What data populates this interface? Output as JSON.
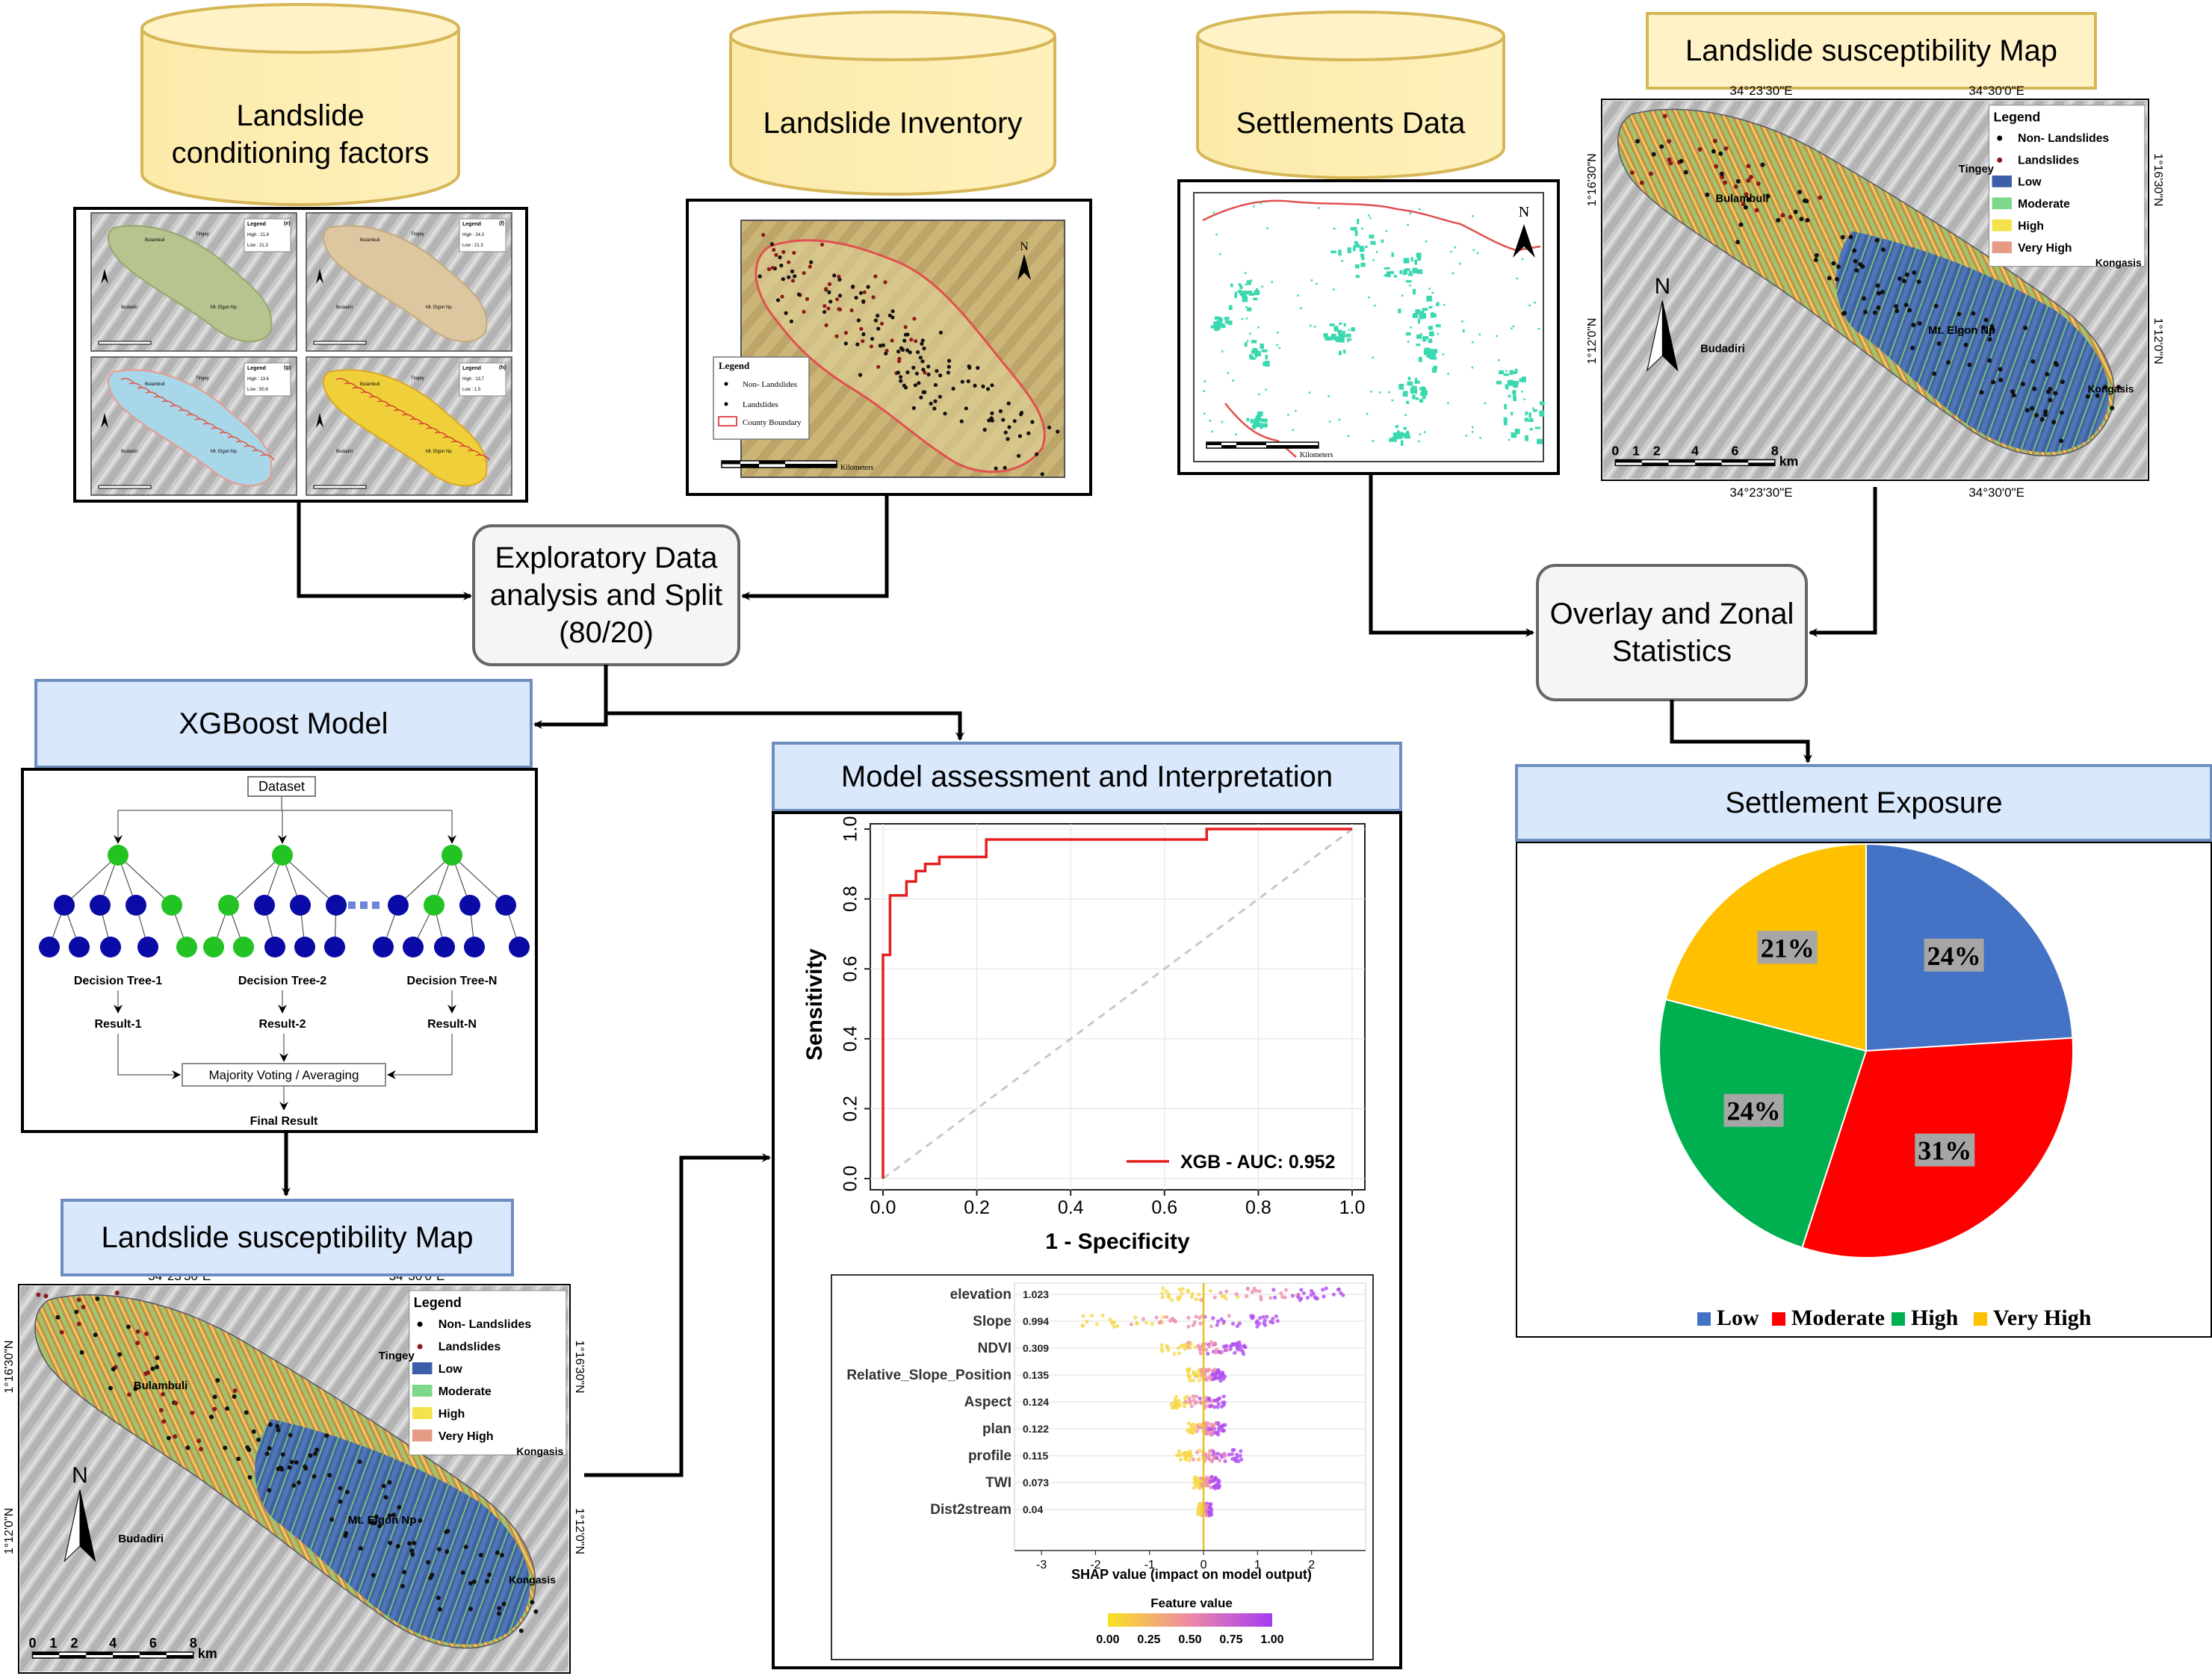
{
  "cylinders": {
    "conditioning": "Landslide\nconditioning factors",
    "inventory": "Landslide Inventory",
    "settlements": "Settlements Data"
  },
  "process": {
    "eda": "Exploratory Data\nanalysis and Split\n(80/20)",
    "overlay": "Overlay and Zonal\nStatistics"
  },
  "headers": {
    "xgboost": "XGBoost Model",
    "susceptibility_top": "Landslide susceptibility Map",
    "susceptibility_bottom": "Landslide susceptibility Map",
    "assessment": "Model assessment and Interpretation",
    "exposure": "Settlement Exposure"
  },
  "inventory_map": {
    "legend_title": "Legend",
    "legend": [
      "Non- Landslides",
      "Landslides",
      "County Boundary"
    ],
    "north": "N",
    "scale_unit": "Kilometers"
  },
  "settlement_map": {
    "north": "N",
    "scale_unit": "Kilometers"
  },
  "factor_panels": {
    "letters": [
      "(e)",
      "(f)",
      "(g)",
      "(h)"
    ],
    "legend_title": "Legend",
    "highs": [
      "High : 21.8",
      "High : 24.3",
      "High : 13.6",
      "High : 13.7"
    ],
    "lows": [
      "Low : 21.3",
      "Low : 21.3",
      "Low : 50.8",
      "Low : 1.5"
    ],
    "places": [
      "Bulambuli",
      "Tingey",
      "Budadiri",
      "Mt. Elgon Np"
    ]
  },
  "susc_map": {
    "lon_labels": [
      "34°23'30\"E",
      "34°30'0\"E"
    ],
    "lat_labels": [
      "1°16'30\"N",
      "1°12'0\"N"
    ],
    "legend_title": "Legend",
    "legend": [
      "Non- Landslides",
      "Landslides",
      "Low",
      "Moderate",
      "High",
      "Very High"
    ],
    "legend_colors": [
      "#000000",
      "#8b1a1a",
      "#3d5ea8",
      "#7dd88a",
      "#f3e24a",
      "#e59b86"
    ],
    "places": {
      "tingey": "Tingey",
      "bulambuli": "Bulambuli",
      "kongasis": "Kongasis",
      "elgon": "Mt. Elgon Np",
      "budadiri": "Budadiri"
    },
    "north": "N",
    "scale_ticks": [
      "0",
      "1",
      "2",
      "4",
      "6",
      "8"
    ],
    "scale_unit": "km"
  },
  "tree": {
    "dataset": "Dataset",
    "trees": [
      "Decision Tree-1",
      "Decision Tree-2",
      "Decision Tree-N"
    ],
    "results": [
      "Result-1",
      "Result-2",
      "Result-N"
    ],
    "voting": "Majority Voting / Averaging",
    "final": "Final Result"
  },
  "roc": {
    "xlabel": "1 - Specificity",
    "ylabel": "Sensitivity",
    "ticks": [
      "0.0",
      "0.2",
      "0.4",
      "0.6",
      "0.8",
      "1.0"
    ],
    "legend": "XGB - AUC: 0.952",
    "curve": [
      [
        0,
        0
      ],
      [
        0,
        0.64
      ],
      [
        0.015,
        0.64
      ],
      [
        0.015,
        0.81
      ],
      [
        0.05,
        0.81
      ],
      [
        0.05,
        0.85
      ],
      [
        0.07,
        0.85
      ],
      [
        0.07,
        0.88
      ],
      [
        0.09,
        0.88
      ],
      [
        0.09,
        0.9
      ],
      [
        0.12,
        0.9
      ],
      [
        0.12,
        0.92
      ],
      [
        0.22,
        0.92
      ],
      [
        0.22,
        0.97
      ],
      [
        0.69,
        0.97
      ],
      [
        0.69,
        1.0
      ],
      [
        1.0,
        1.0
      ]
    ]
  },
  "shap": {
    "features": [
      "elevation",
      "Slope",
      "NDVI",
      "Relative_Slope_Position",
      "Aspect",
      "plan",
      "profile",
      "TWI",
      "Dist2stream"
    ],
    "values": [
      "1.023",
      "0.994",
      "0.309",
      "0.135",
      "0.124",
      "0.122",
      "0.115",
      "0.073",
      "0.04"
    ],
    "xticks": [
      "-3",
      "-2",
      "-1",
      "0",
      "1",
      "2"
    ],
    "xlabel": "SHAP value (impact on model output)",
    "colorbar_title": "Feature value",
    "colorbar_ticks": [
      "0.00",
      "0.25",
      "0.50",
      "0.75",
      "1.00"
    ]
  },
  "chart_data": {
    "type": "pie",
    "categories": [
      "Low",
      "Moderate",
      "High",
      "Very High"
    ],
    "values": [
      24,
      31,
      24,
      21
    ],
    "labels": [
      "24%",
      "31%",
      "24%",
      "21%"
    ],
    "colors": [
      "#4472c4",
      "#ff0000",
      "#00b050",
      "#ffc000"
    ],
    "legend_placement": "bottom"
  }
}
